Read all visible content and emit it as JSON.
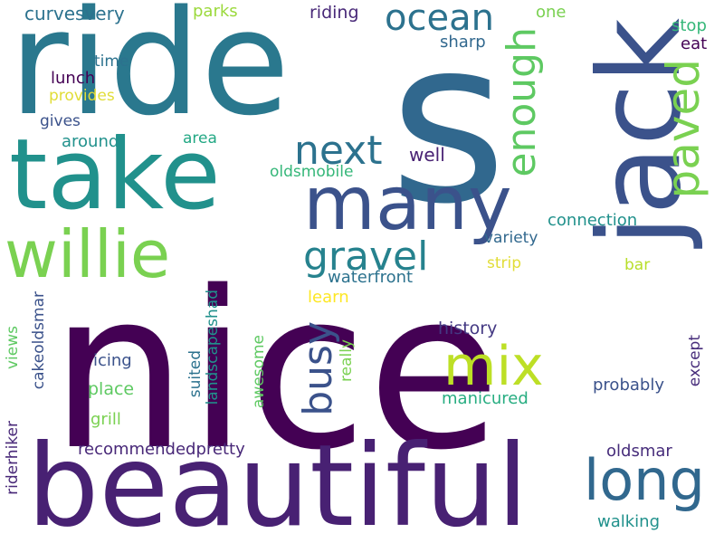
{
  "palette": {
    "background": "#ffffff",
    "dark_purple": "#440154",
    "indigo": "#3b528b",
    "blue": "#2c728e",
    "teal": "#21918c",
    "green": "#27ad81",
    "lime": "#5ec962",
    "light_green": "#9bd93c",
    "yellow": "#e1dd37"
  },
  "words": {
    "nice": "nice",
    "s": "s",
    "ride": "ride",
    "beautiful": "beautiful",
    "take": "take",
    "jack": "jack",
    "many": "many",
    "willie": "willie",
    "mix": "mix",
    "long": "long",
    "enough": "enough",
    "paved": "paved",
    "ocean": "ocean",
    "next": "next",
    "gravel": "gravel",
    "busy": "busy",
    "curvesvery": "curvesvery",
    "riding": "riding",
    "parks": "parks",
    "one": "one",
    "stop": "stop",
    "eat": "eat",
    "sharp": "sharp",
    "time": "time",
    "lunch": "lunch",
    "provides": "provides",
    "gives": "gives",
    "around": "around",
    "area": "area",
    "well": "well",
    "oldsmobile": "oldsmobile",
    "connection": "connection",
    "variety": "variety",
    "strip": "strip",
    "bar": "bar",
    "waterfront": "waterfront",
    "learn": "learn",
    "history": "history",
    "views": "views",
    "cakeoldsmar": "cakeoldsmar",
    "landscapeshad": "landscapeshad",
    "suited": "suited",
    "awesome": "awesome",
    "really": "really",
    "icing": "icing",
    "place": "place",
    "grill": "grill",
    "manicured": "manicured",
    "probably": "probably",
    "except": "except",
    "riderhiker": "riderhiker",
    "recommendedpretty": "recommendedpretty",
    "oldsmar": "oldsmar",
    "walking": "walking"
  }
}
